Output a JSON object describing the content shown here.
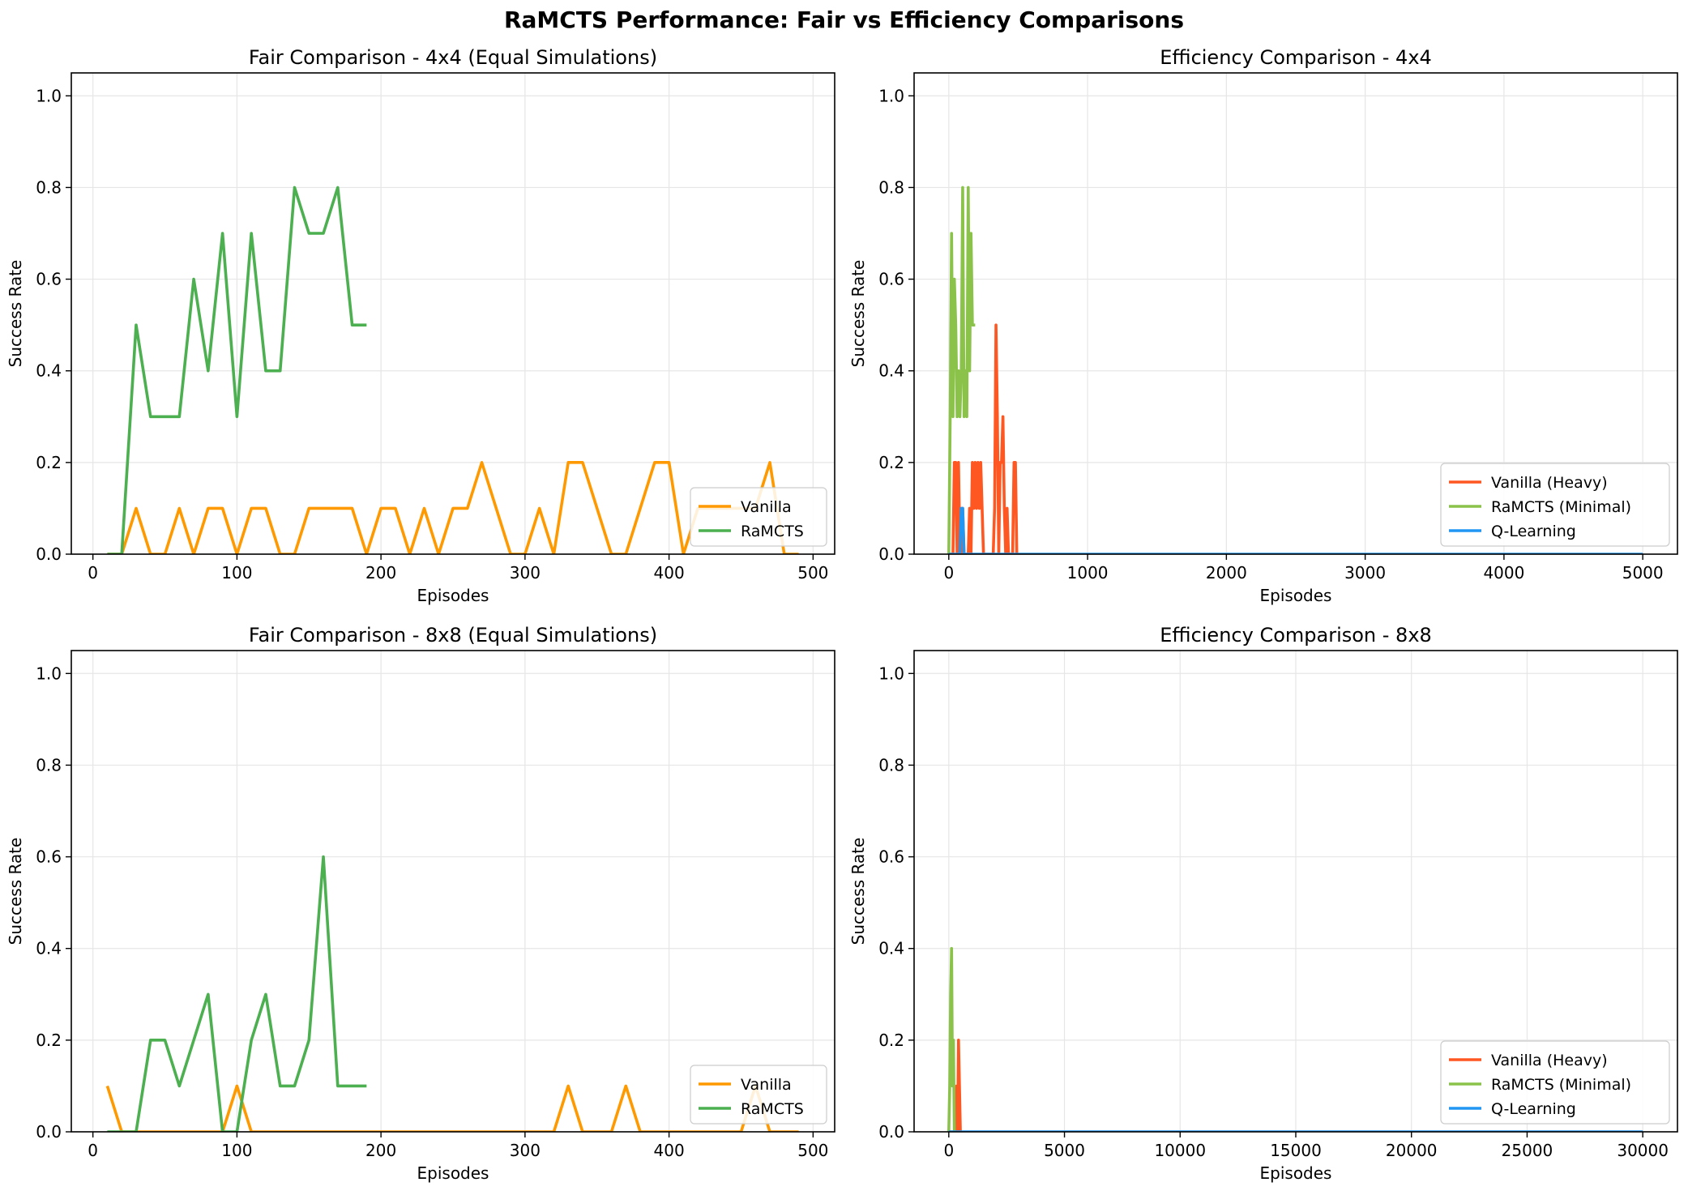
{
  "figure_title": "RaMCTS Performance: Fair vs Efficiency Comparisons",
  "chart_data": [
    {
      "type": "line",
      "title": "Fair Comparison - 4x4 (Equal Simulations)",
      "xlabel": "Episodes",
      "ylabel": "Success Rate",
      "xlim": [
        -15,
        515
      ],
      "ylim": [
        0,
        1.05
      ],
      "xticks": [
        0,
        100,
        200,
        300,
        400,
        500
      ],
      "yticks": [
        0.0,
        0.2,
        0.4,
        0.6,
        0.8,
        1.0
      ],
      "grid": true,
      "legend_position": "lower-right",
      "series": [
        {
          "name": "Vanilla",
          "color": "#ff9900",
          "x": [
            10,
            20,
            30,
            40,
            50,
            60,
            70,
            80,
            90,
            100,
            110,
            120,
            130,
            140,
            150,
            160,
            170,
            180,
            190,
            200,
            210,
            220,
            230,
            240,
            250,
            260,
            270,
            280,
            290,
            300,
            310,
            320,
            330,
            340,
            350,
            360,
            370,
            380,
            390,
            400,
            410,
            420,
            430,
            440,
            450,
            460,
            470,
            480,
            490
          ],
          "y": [
            0,
            0,
            0.1,
            0,
            0,
            0.1,
            0,
            0.1,
            0.1,
            0,
            0.1,
            0.1,
            0,
            0,
            0.1,
            0.1,
            0.1,
            0.1,
            0,
            0.1,
            0.1,
            0,
            0.1,
            0,
            0.1,
            0.1,
            0.2,
            0.1,
            0,
            0,
            0.1,
            0,
            0.2,
            0.2,
            0.1,
            0,
            0,
            0.1,
            0.2,
            0.2,
            0,
            0.1,
            0.1,
            0.1,
            0.1,
            0.1,
            0.2,
            0,
            0
          ]
        },
        {
          "name": "RaMCTS",
          "color": "#4caf50",
          "x": [
            10,
            20,
            30,
            40,
            50,
            60,
            70,
            80,
            90,
            100,
            110,
            120,
            130,
            140,
            150,
            160,
            170,
            180,
            190
          ],
          "y": [
            0,
            0,
            0.5,
            0.3,
            0.3,
            0.3,
            0.6,
            0.4,
            0.7,
            0.3,
            0.7,
            0.4,
            0.4,
            0.8,
            0.7,
            0.7,
            0.8,
            0.5,
            0.5
          ]
        }
      ]
    },
    {
      "type": "line",
      "title": "Efficiency Comparison - 4x4",
      "xlabel": "Episodes",
      "ylabel": "Success Rate",
      "xlim": [
        -250,
        5250
      ],
      "ylim": [
        0,
        1.05
      ],
      "xticks": [
        0,
        1000,
        2000,
        3000,
        4000,
        5000
      ],
      "yticks": [
        0.0,
        0.2,
        0.4,
        0.6,
        0.8,
        1.0
      ],
      "grid": true,
      "legend_position": "lower-right",
      "series": [
        {
          "name": "Vanilla (Heavy)",
          "color": "#ff5722",
          "x": [
            0,
            30,
            40,
            50,
            60,
            70,
            80,
            90,
            100,
            110,
            120,
            130,
            140,
            150,
            160,
            170,
            180,
            190,
            200,
            210,
            220,
            230,
            240,
            250,
            260,
            270,
            280,
            290,
            300,
            310,
            320,
            330,
            340,
            350,
            360,
            370,
            380,
            390,
            400,
            410,
            420,
            430,
            440,
            450,
            460,
            470,
            480,
            490,
            500
          ],
          "y": [
            0,
            0,
            0.2,
            0.2,
            0,
            0.2,
            0,
            0,
            0.1,
            0,
            0,
            0,
            0,
            0.1,
            0,
            0.2,
            0.1,
            0.2,
            0.1,
            0.2,
            0.1,
            0.2,
            0.1,
            0,
            0,
            0,
            0,
            0,
            0,
            0,
            0,
            0.1,
            0.5,
            0.3,
            0,
            0.2,
            0.2,
            0.3,
            0.1,
            0,
            0.1,
            0,
            0,
            0,
            0,
            0.2,
            0.2,
            0,
            0
          ]
        },
        {
          "name": "RaMCTS (Minimal)",
          "color": "#8bc34a",
          "x": [
            0,
            10,
            20,
            30,
            40,
            50,
            60,
            70,
            80,
            90,
            100,
            110,
            120,
            130,
            140,
            150,
            160,
            170,
            180,
            190
          ],
          "y": [
            0,
            0.3,
            0.7,
            0.3,
            0.6,
            0.5,
            0.3,
            0.4,
            0.3,
            0.4,
            0.8,
            0.3,
            0.4,
            0.3,
            0.8,
            0.4,
            0.7,
            0.5,
            0.5,
            0.5
          ]
        },
        {
          "name": "Q-Learning",
          "color": "#2196f3",
          "x": [
            0,
            80,
            90,
            100,
            110,
            120,
            5000
          ],
          "y": [
            0,
            0,
            0.1,
            0.1,
            0,
            0,
            0
          ]
        }
      ]
    },
    {
      "type": "line",
      "title": "Fair Comparison - 8x8 (Equal Simulations)",
      "xlabel": "Episodes",
      "ylabel": "Success Rate",
      "xlim": [
        -15,
        515
      ],
      "ylim": [
        0,
        1.05
      ],
      "xticks": [
        0,
        100,
        200,
        300,
        400,
        500
      ],
      "yticks": [
        0.0,
        0.2,
        0.4,
        0.6,
        0.8,
        1.0
      ],
      "grid": true,
      "legend_position": "lower-right",
      "series": [
        {
          "name": "Vanilla",
          "color": "#ff9900",
          "x": [
            10,
            20,
            30,
            40,
            50,
            60,
            70,
            80,
            90,
            100,
            110,
            120,
            130,
            140,
            150,
            160,
            170,
            180,
            190,
            200,
            210,
            220,
            230,
            240,
            250,
            260,
            270,
            280,
            290,
            300,
            310,
            320,
            330,
            340,
            350,
            360,
            370,
            380,
            390,
            400,
            410,
            420,
            430,
            440,
            450,
            460,
            470,
            480,
            490
          ],
          "y": [
            0.1,
            0,
            0,
            0,
            0,
            0,
            0,
            0,
            0,
            0.1,
            0,
            0,
            0,
            0,
            0,
            0,
            0,
            0,
            0,
            0,
            0,
            0,
            0,
            0,
            0,
            0,
            0,
            0,
            0,
            0,
            0,
            0,
            0.1,
            0,
            0,
            0,
            0.1,
            0,
            0,
            0,
            0,
            0,
            0,
            0,
            0,
            0.1,
            0,
            0,
            0
          ]
        },
        {
          "name": "RaMCTS",
          "color": "#4caf50",
          "x": [
            10,
            20,
            30,
            40,
            50,
            60,
            70,
            80,
            90,
            100,
            110,
            120,
            130,
            140,
            150,
            160,
            170,
            180,
            190
          ],
          "y": [
            0,
            0,
            0,
            0.2,
            0.2,
            0.1,
            0.2,
            0.3,
            0,
            0,
            0.2,
            0.3,
            0.1,
            0.1,
            0.2,
            0.6,
            0.1,
            0.1,
            0.1
          ]
        }
      ]
    },
    {
      "type": "line",
      "title": "Efficiency Comparison - 8x8",
      "xlabel": "Episodes",
      "ylabel": "Success Rate",
      "xlim": [
        -1500,
        31500
      ],
      "ylim": [
        0,
        1.05
      ],
      "xticks": [
        0,
        5000,
        10000,
        15000,
        20000,
        25000,
        30000
      ],
      "yticks": [
        0.0,
        0.2,
        0.4,
        0.6,
        0.8,
        1.0
      ],
      "grid": true,
      "legend_position": "lower-right",
      "series": [
        {
          "name": "Vanilla (Heavy)",
          "color": "#ff5722",
          "x": [
            0,
            300,
            340,
            380,
            420,
            460,
            500
          ],
          "y": [
            0,
            0,
            0.1,
            0,
            0.2,
            0.1,
            0
          ]
        },
        {
          "name": "RaMCTS (Minimal)",
          "color": "#8bc34a",
          "x": [
            0,
            40,
            80,
            120,
            160,
            200,
            240
          ],
          "y": [
            0,
            0.1,
            0.3,
            0.4,
            0.1,
            0.2,
            0
          ]
        },
        {
          "name": "Q-Learning",
          "color": "#2196f3",
          "x": [
            0,
            30000
          ],
          "y": [
            0,
            0
          ]
        }
      ]
    }
  ]
}
